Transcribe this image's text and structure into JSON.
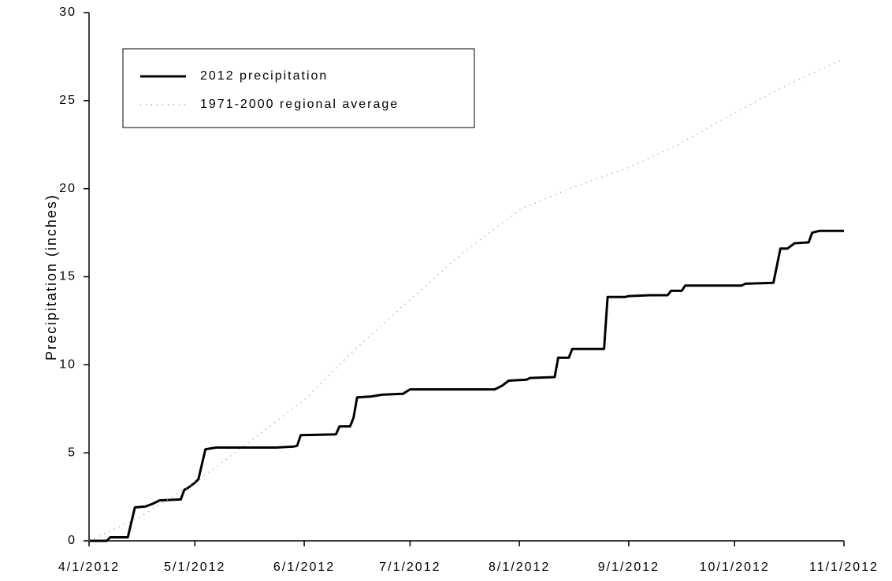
{
  "chart_data": {
    "type": "line",
    "y_label": "Precipitation (inches)",
    "xlim": [
      "4/1/2012",
      "11/1/2012"
    ],
    "xticks": [
      "4/1/2012",
      "5/1/2012",
      "6/1/2012",
      "7/1/2012",
      "8/1/2012",
      "9/1/2012",
      "10/1/2012",
      "11/1/2012"
    ],
    "ylim": [
      0,
      30
    ],
    "yticks": [
      0,
      5,
      10,
      15,
      20,
      25,
      30
    ],
    "series": [
      {
        "name": "2012 precipitation",
        "color": "#000000",
        "style": "solid",
        "x": [
          "4/1/2012",
          "4/6/2012",
          "4/7/2012",
          "4/12/2012",
          "4/14/2012",
          "4/17/2012",
          "4/19/2012",
          "4/21/2012",
          "4/27/2012",
          "4/28/2012",
          "4/29/2012",
          "5/1/2012",
          "5/2/2012",
          "5/4/2012",
          "5/7/2012",
          "5/24/2012",
          "5/29/2012",
          "5/30/2012",
          "5/31/2012",
          "6/10/2012",
          "6/11/2012",
          "6/14/2012",
          "6/15/2012",
          "6/16/2012",
          "6/20/2012",
          "6/23/2012",
          "6/29/2012",
          "7/1/2012",
          "7/25/2012",
          "7/27/2012",
          "7/29/2012",
          "8/3/2012",
          "8/4/2012",
          "8/11/2012",
          "8/12/2012",
          "8/15/2012",
          "8/16/2012",
          "8/25/2012",
          "8/26/2012",
          "8/31/2012",
          "9/1/2012",
          "9/7/2012",
          "9/12/2012",
          "9/13/2012",
          "9/16/2012",
          "9/17/2012",
          "10/3/2012",
          "10/4/2012",
          "10/12/2012",
          "10/14/2012",
          "10/16/2012",
          "10/18/2012",
          "10/22/2012",
          "10/23/2012",
          "10/25/2012",
          "11/1/2012"
        ],
        "values": [
          0,
          0,
          0.2,
          0.2,
          1.9,
          1.95,
          2.1,
          2.3,
          2.35,
          2.9,
          3.0,
          3.3,
          3.5,
          5.2,
          5.3,
          5.3,
          5.35,
          5.4,
          6.0,
          6.05,
          6.5,
          6.5,
          7.0,
          8.15,
          8.2,
          8.3,
          8.35,
          8.6,
          8.6,
          8.8,
          9.1,
          9.15,
          9.25,
          9.3,
          10.4,
          10.4,
          10.9,
          10.9,
          13.85,
          13.85,
          13.9,
          13.95,
          13.95,
          14.2,
          14.2,
          14.5,
          14.5,
          14.6,
          14.65,
          16.6,
          16.6,
          16.9,
          16.95,
          17.5,
          17.6,
          17.6
        ]
      },
      {
        "name": "1971-2000 regional average",
        "color": "#999999",
        "style": "dotted",
        "x": [
          "4/1/2012",
          "4/15/2012",
          "5/1/2012",
          "5/15/2012",
          "6/1/2012",
          "6/15/2012",
          "7/1/2012",
          "7/15/2012",
          "8/1/2012",
          "8/15/2012",
          "9/1/2012",
          "9/15/2012",
          "10/1/2012",
          "10/15/2012",
          "11/1/2012"
        ],
        "values": [
          0,
          1.3,
          3.3,
          5.4,
          8.0,
          10.8,
          13.7,
          16.2,
          18.8,
          20.0,
          21.2,
          22.5,
          24.3,
          25.8,
          27.4
        ]
      }
    ]
  }
}
